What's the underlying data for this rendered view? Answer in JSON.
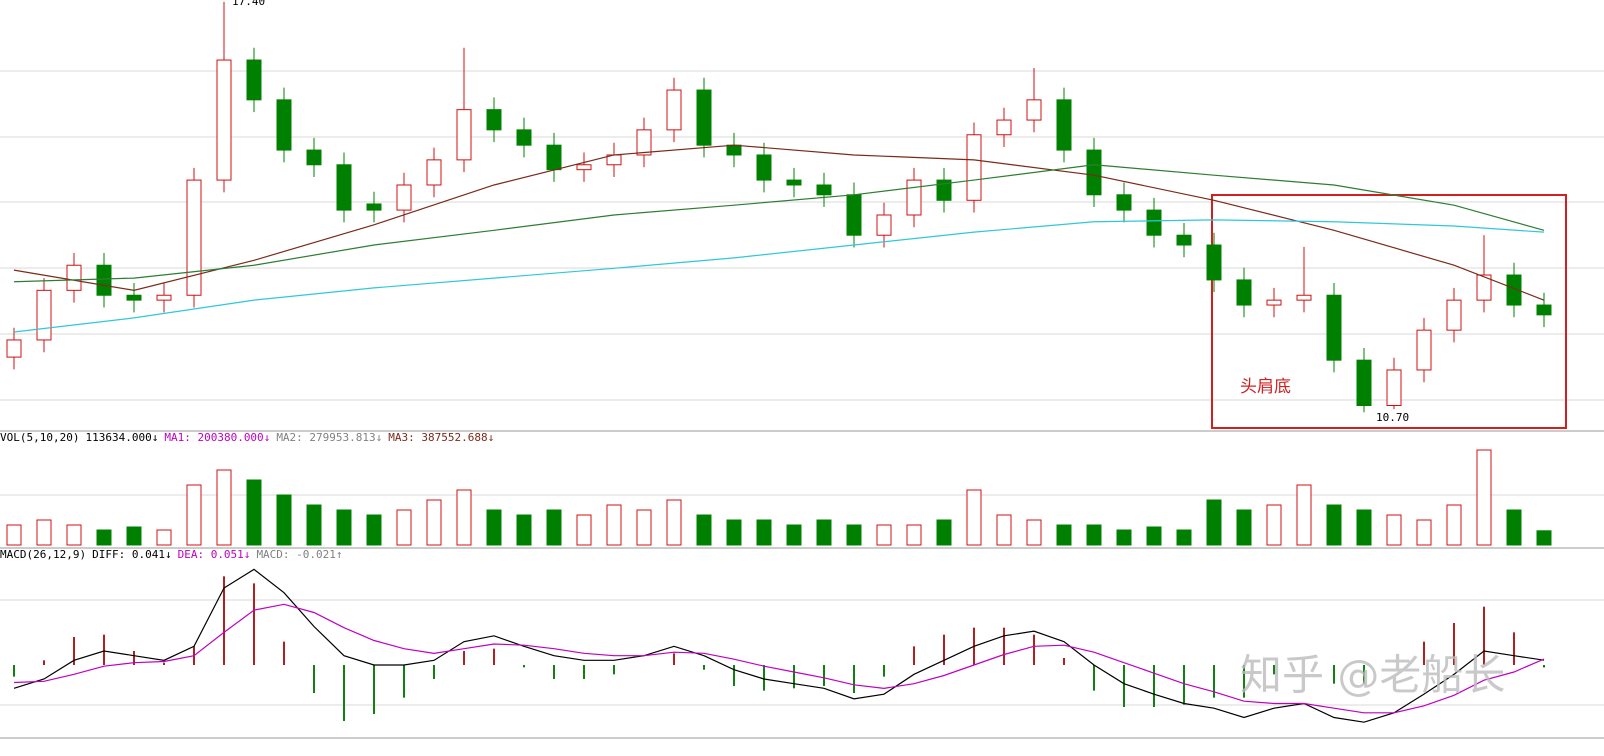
{
  "chart_data": {
    "type": "candlestick",
    "candles": {
      "open": [
        11.6,
        11.88,
        12.69,
        13.1,
        12.61,
        12.53,
        12.61,
        14.49,
        16.45,
        15.8,
        14.98,
        14.74,
        14.1,
        14.0,
        14.41,
        14.82,
        15.64,
        15.31,
        15.06,
        14.66,
        14.74,
        14.9,
        15.31,
        15.96,
        15.06,
        14.9,
        14.49,
        14.41,
        14.25,
        13.59,
        13.92,
        14.49,
        14.16,
        15.23,
        15.47,
        15.8,
        14.98,
        14.25,
        14.0,
        13.59,
        13.43,
        12.86,
        12.45,
        12.53,
        12.61,
        11.55,
        10.81,
        11.39,
        12.04,
        12.53,
        12.94,
        12.45
      ],
      "high": [
        12.08,
        12.89,
        13.3,
        13.3,
        12.81,
        12.81,
        14.69,
        17.4,
        16.65,
        16.0,
        15.18,
        14.94,
        14.3,
        14.61,
        15.02,
        16.65,
        15.84,
        15.51,
        15.26,
        14.94,
        15.1,
        15.51,
        16.16,
        16.16,
        15.26,
        15.1,
        14.69,
        14.61,
        14.45,
        14.12,
        14.69,
        14.69,
        15.43,
        15.67,
        16.32,
        16.0,
        15.18,
        14.45,
        14.2,
        13.79,
        13.63,
        13.06,
        12.73,
        13.4,
        12.81,
        11.75,
        11.59,
        12.24,
        12.73,
        13.59,
        13.14,
        12.65
      ],
      "low": [
        11.4,
        11.68,
        12.49,
        12.41,
        12.33,
        12.33,
        12.41,
        14.29,
        15.6,
        14.78,
        14.54,
        13.8,
        13.8,
        13.8,
        14.21,
        14.62,
        15.11,
        14.86,
        14.46,
        14.46,
        14.54,
        14.7,
        15.11,
        14.86,
        14.7,
        14.29,
        14.21,
        14.05,
        13.39,
        13.39,
        13.72,
        13.96,
        13.96,
        15.03,
        15.27,
        14.78,
        14.05,
        13.8,
        13.39,
        13.23,
        12.66,
        12.25,
        12.25,
        12.33,
        11.35,
        10.7,
        10.75,
        11.19,
        11.84,
        12.33,
        12.25,
        12.09
      ],
      "close": [
        11.88,
        12.69,
        13.1,
        12.61,
        12.53,
        12.61,
        14.49,
        16.45,
        15.8,
        14.98,
        14.74,
        14.0,
        14.0,
        14.41,
        14.82,
        15.64,
        15.31,
        15.06,
        14.66,
        14.74,
        14.9,
        15.31,
        15.96,
        15.06,
        14.9,
        14.49,
        14.41,
        14.25,
        13.59,
        13.92,
        14.49,
        14.16,
        15.23,
        15.47,
        15.8,
        14.98,
        14.25,
        14.0,
        13.59,
        13.43,
        12.86,
        12.45,
        12.53,
        12.61,
        11.55,
        10.81,
        11.39,
        12.04,
        12.53,
        12.94,
        12.45,
        12.29
      ]
    },
    "up_color": "#d01010",
    "down_color": "#008000",
    "ylim": [
      10.41,
      17.43
    ],
    "ma_lines": [
      {
        "color": "#7a2a1a",
        "x": [
          0,
          4,
          8,
          12,
          16,
          20,
          24,
          28,
          32,
          36,
          40,
          44,
          48,
          51
        ],
        "values": [
          13.02,
          12.69,
          13.18,
          13.76,
          14.41,
          14.9,
          15.06,
          14.9,
          14.82,
          14.57,
          14.16,
          13.67,
          13.1,
          12.53
        ]
      },
      {
        "color": "#2e7d32",
        "x": [
          0,
          4,
          8,
          12,
          16,
          20,
          24,
          28,
          32,
          36,
          40,
          44,
          48,
          51
        ],
        "values": [
          12.83,
          12.89,
          13.1,
          13.43,
          13.67,
          13.92,
          14.08,
          14.25,
          14.49,
          14.74,
          14.57,
          14.41,
          14.08,
          13.67
        ]
      },
      {
        "color": "#30c8d8",
        "x": [
          0,
          4,
          8,
          12,
          16,
          20,
          24,
          28,
          32,
          36,
          40,
          44,
          48,
          51
        ],
        "values": [
          12.01,
          12.24,
          12.53,
          12.73,
          12.89,
          13.05,
          13.22,
          13.43,
          13.64,
          13.81,
          13.84,
          13.81,
          13.74,
          13.64
        ]
      }
    ],
    "annotations": [
      "17.40",
      "10.70",
      "头肩底"
    ],
    "volume": {
      "header": [
        {
          "text": "VOL(5,10,20)",
          "color": "#000000"
        },
        {
          "text": "113634.000↓",
          "color": "#000000"
        },
        {
          "text": "MA1: 200380.000↓",
          "color": "#c000c0"
        },
        {
          "text": "MA2: 279953.813↓",
          "color": "#808080"
        },
        {
          "text": "MA3: 387552.688↓",
          "color": "#7a2a1a"
        }
      ],
      "ylim": [
        0,
        800000
      ],
      "values": [
        160000,
        200000,
        160000,
        120000,
        144000,
        120000,
        480000,
        600000,
        520000,
        400000,
        320000,
        280000,
        240000,
        280000,
        360000,
        440000,
        280000,
        240000,
        280000,
        240000,
        320000,
        280000,
        360000,
        240000,
        200000,
        200000,
        160000,
        200000,
        160000,
        160000,
        160000,
        200000,
        440000,
        240000,
        200000,
        160000,
        160000,
        120000,
        144000,
        120000,
        360000,
        280000,
        320000,
        480000,
        320000,
        280000,
        240000,
        200000,
        320000,
        760000,
        280000,
        113634
      ]
    },
    "macd": {
      "header": [
        {
          "text": "MACD(26,12,9)",
          "color": "#000000"
        },
        {
          "text": "DIFF: 0.041↓",
          "color": "#000000"
        },
        {
          "text": "DEA: 0.051↓",
          "color": "#c000c0"
        },
        {
          "text": "MACD: -0.021↑",
          "color": "#808080"
        }
      ],
      "ylim": [
        -0.6,
        0.9
      ],
      "diff": {
        "color": "#000000",
        "values": [
          -0.2,
          -0.12,
          0.04,
          0.12,
          0.08,
          0.04,
          0.16,
          0.66,
          0.82,
          0.62,
          0.33,
          0.08,
          0,
          0,
          0.04,
          0.2,
          0.25,
          0.16,
          0.08,
          0.04,
          0.04,
          0.08,
          0.16,
          0.08,
          -0.04,
          -0.12,
          -0.16,
          -0.2,
          -0.29,
          -0.25,
          -0.08,
          0.04,
          0.16,
          0.25,
          0.29,
          0.2,
          0,
          -0.16,
          -0.25,
          -0.33,
          -0.37,
          -0.45,
          -0.37,
          -0.33,
          -0.45,
          -0.49,
          -0.41,
          -0.25,
          -0.08,
          0.12,
          0.08,
          0.041
        ]
      },
      "dea": {
        "color": "#c000c0",
        "values": [
          -0.15,
          -0.14,
          -0.08,
          -0.01,
          0.02,
          0.03,
          0.08,
          0.28,
          0.47,
          0.52,
          0.45,
          0.32,
          0.21,
          0.14,
          0.1,
          0.14,
          0.18,
          0.17,
          0.14,
          0.1,
          0.08,
          0.08,
          0.11,
          0.1,
          0.05,
          -0.01,
          -0.06,
          -0.11,
          -0.17,
          -0.2,
          -0.16,
          -0.09,
          0,
          0.09,
          0.16,
          0.17,
          0.11,
          0.02,
          -0.07,
          -0.16,
          -0.23,
          -0.31,
          -0.33,
          -0.33,
          -0.37,
          -0.41,
          -0.41,
          -0.35,
          -0.26,
          -0.13,
          -0.06,
          0.051
        ]
      },
      "hist": [
        -0.1,
        0.04,
        0.24,
        0.26,
        0.12,
        0.02,
        0.16,
        0.76,
        0.7,
        0.2,
        -0.24,
        -0.48,
        -0.42,
        -0.28,
        -0.12,
        0.12,
        0.14,
        -0.02,
        -0.12,
        -0.12,
        -0.08,
        0,
        0.1,
        -0.04,
        -0.18,
        -0.22,
        -0.2,
        -0.18,
        -0.24,
        -0.1,
        0.16,
        0.26,
        0.32,
        0.32,
        0.26,
        0.06,
        -0.22,
        -0.36,
        -0.36,
        -0.34,
        -0.28,
        -0.28,
        -0.08,
        0,
        -0.16,
        -0.16,
        0,
        0.2,
        0.36,
        0.5,
        0.28,
        -0.021
      ]
    },
    "watermark": "知乎 @老船长"
  }
}
